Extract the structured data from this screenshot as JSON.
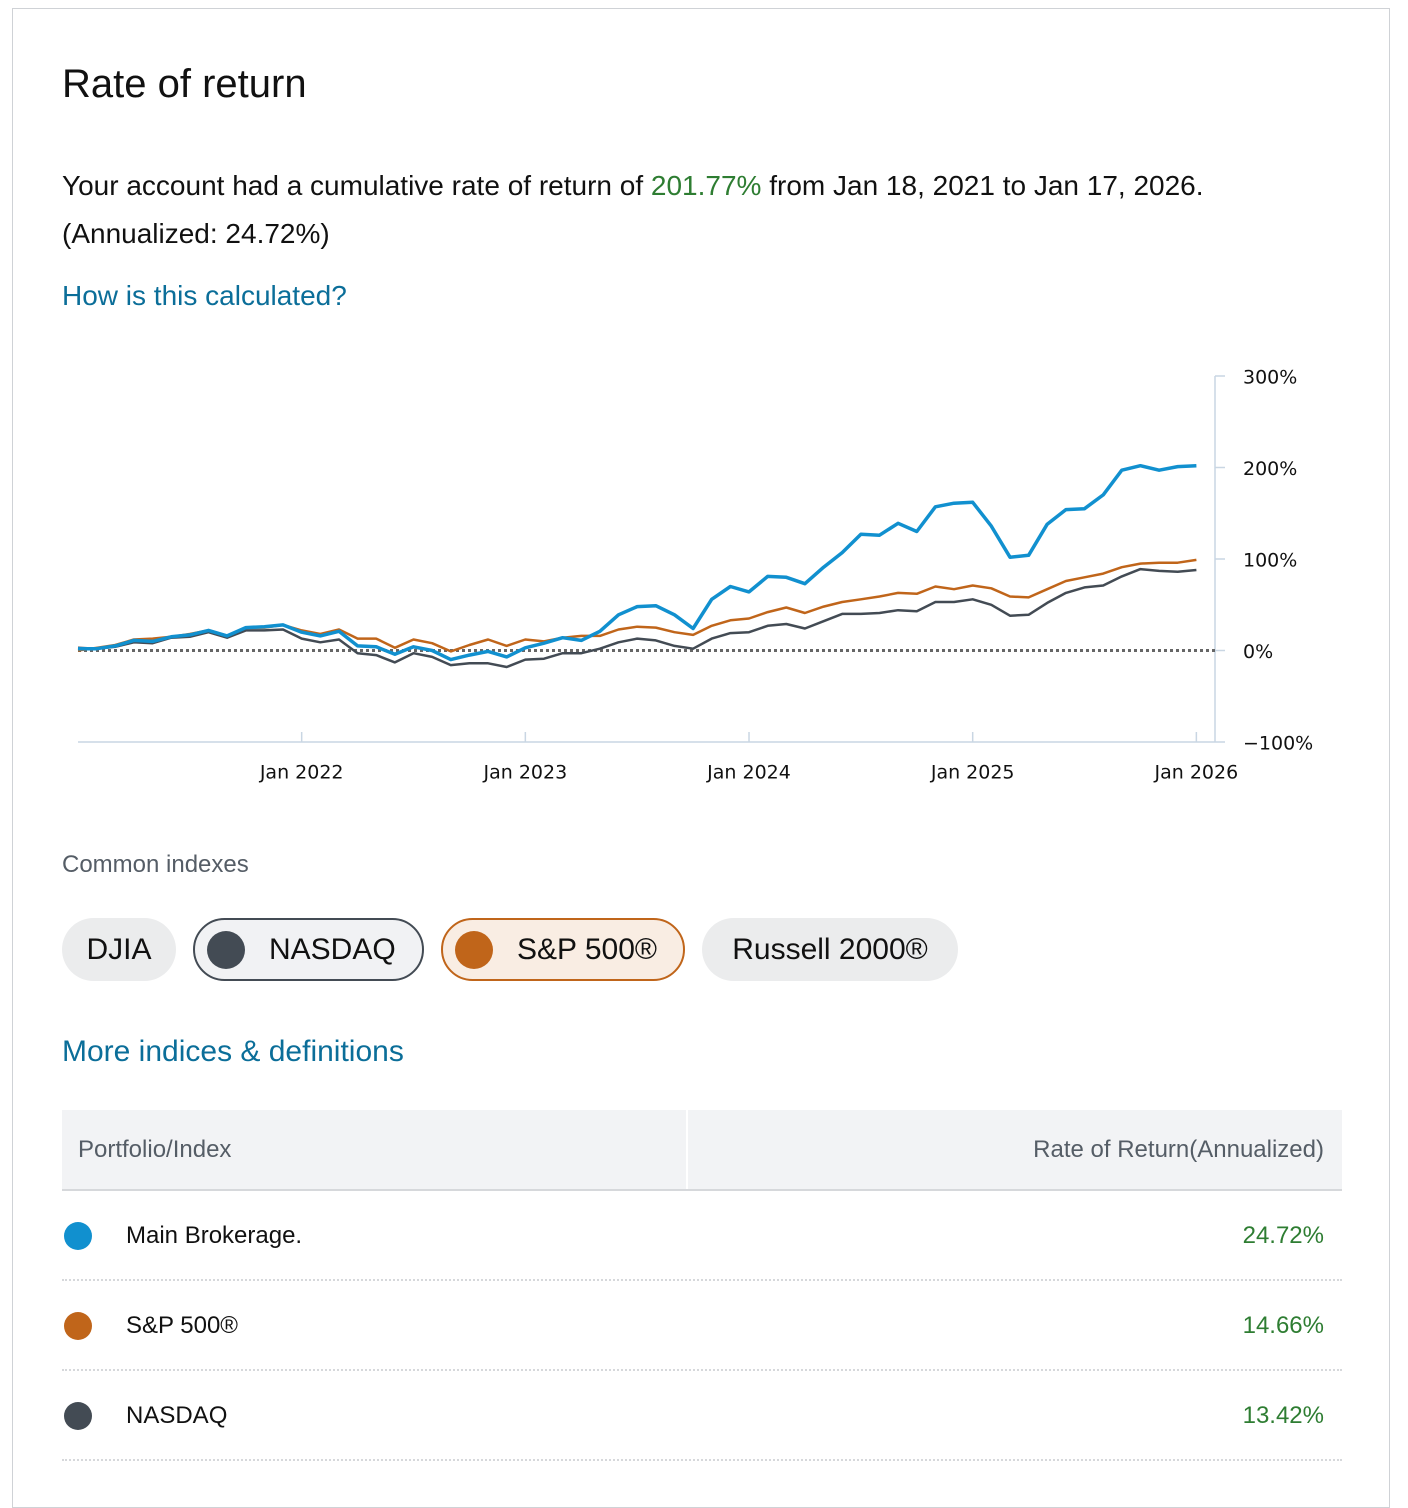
{
  "header": {
    "title": "Rate of return"
  },
  "summary": {
    "before": "Your account had a cumulative rate of return of",
    "rate": "201.77%",
    "after": "from Jan 18, 2021 to Jan 17, 2026. (Annualized: 24.72%)"
  },
  "help_link": "How is this calculated?",
  "chart_data": {
    "type": "line",
    "x": [
      "2021-01",
      "2021-02",
      "2021-03",
      "2021-04",
      "2021-05",
      "2021-06",
      "2021-07",
      "2021-08",
      "2021-09",
      "2021-10",
      "2021-11",
      "2021-12",
      "2022-01",
      "2022-02",
      "2022-03",
      "2022-04",
      "2022-05",
      "2022-06",
      "2022-07",
      "2022-08",
      "2022-09",
      "2022-10",
      "2022-11",
      "2022-12",
      "2023-01",
      "2023-02",
      "2023-03",
      "2023-04",
      "2023-05",
      "2023-06",
      "2023-07",
      "2023-08",
      "2023-09",
      "2023-10",
      "2023-11",
      "2023-12",
      "2024-01",
      "2024-02",
      "2024-03",
      "2024-04",
      "2024-05",
      "2024-06",
      "2024-07",
      "2024-08",
      "2024-09",
      "2024-10",
      "2024-11",
      "2024-12",
      "2025-01",
      "2025-02",
      "2025-03",
      "2025-04",
      "2025-05",
      "2025-06",
      "2025-07",
      "2025-08",
      "2025-09",
      "2025-10",
      "2025-11",
      "2025-12",
      "2026-01"
    ],
    "series": [
      {
        "name": "Main Brokerage.",
        "color": "#1190cf",
        "values": [
          2,
          2,
          5,
          11,
          10,
          15,
          17,
          22,
          16,
          25,
          26,
          28,
          20,
          16,
          21,
          5,
          4,
          -4,
          4,
          0,
          -10,
          -5,
          -1,
          -7,
          3,
          8,
          14,
          11,
          21,
          39,
          48,
          49,
          39,
          24,
          56,
          70,
          64,
          81,
          80,
          73,
          91,
          107,
          127,
          126,
          139,
          130,
          157,
          161,
          162,
          136,
          102,
          104,
          138,
          154,
          155,
          170,
          197,
          202,
          197,
          201,
          202
        ]
      },
      {
        "name": "S&P 500®",
        "color": "#c0651a",
        "values": [
          0,
          3,
          6,
          12,
          13,
          15,
          18,
          22,
          16,
          25,
          25,
          28,
          22,
          18,
          23,
          13,
          13,
          3,
          12,
          8,
          -1,
          6,
          12,
          5,
          12,
          10,
          14,
          16,
          16,
          23,
          26,
          25,
          20,
          17,
          27,
          33,
          35,
          42,
          47,
          41,
          48,
          53,
          56,
          59,
          63,
          62,
          70,
          67,
          71,
          68,
          59,
          58,
          67,
          76,
          80,
          84,
          91,
          95,
          96,
          96,
          99
        ]
      },
      {
        "name": "NASDAQ",
        "color": "#434b54",
        "values": [
          3,
          2,
          4,
          9,
          8,
          14,
          15,
          20,
          14,
          22,
          22,
          23,
          13,
          9,
          12,
          -3,
          -5,
          -13,
          -3,
          -7,
          -16,
          -14,
          -14,
          -18,
          -10,
          -9,
          -3,
          -3,
          2,
          9,
          13,
          11,
          5,
          2,
          13,
          19,
          20,
          27,
          29,
          24,
          32,
          40,
          40,
          41,
          44,
          43,
          53,
          53,
          56,
          50,
          38,
          39,
          52,
          63,
          69,
          71,
          81,
          89,
          87,
          86,
          88
        ]
      }
    ],
    "xlim": [
      "2021-01",
      "2026-02"
    ],
    "xticks": [
      {
        "value": "2022-01",
        "label": "Jan 2022"
      },
      {
        "value": "2023-01",
        "label": "Jan 2023"
      },
      {
        "value": "2024-01",
        "label": "Jan 2024"
      },
      {
        "value": "2025-01",
        "label": "Jan 2025"
      },
      {
        "value": "2026-01",
        "label": "Jan 2026"
      }
    ],
    "ylim": [
      -100,
      300
    ],
    "yticks": [
      {
        "value": -100,
        "label": "−100%"
      },
      {
        "value": 0,
        "label": "0%"
      },
      {
        "value": 100,
        "label": "100%"
      },
      {
        "value": 200,
        "label": "200%"
      },
      {
        "value": 300,
        "label": "300%"
      }
    ],
    "reference_line": 0,
    "y_axis_side": "right"
  },
  "indexes": {
    "label": "Common indexes",
    "chips": [
      {
        "label": "DJIA",
        "selected": false
      },
      {
        "label": "NASDAQ",
        "selected": true,
        "color": "#434b54"
      },
      {
        "label": "S&P 500®",
        "selected": true,
        "color": "#c0651a"
      },
      {
        "label": "Russell 2000®",
        "selected": false
      }
    ],
    "more_link": "More indices & definitions"
  },
  "table": {
    "headers": [
      "Portfolio/Index",
      "Rate of Return(Annualized)"
    ],
    "rates": [
      "24.72%",
      "14.66%",
      "13.42%"
    ]
  }
}
